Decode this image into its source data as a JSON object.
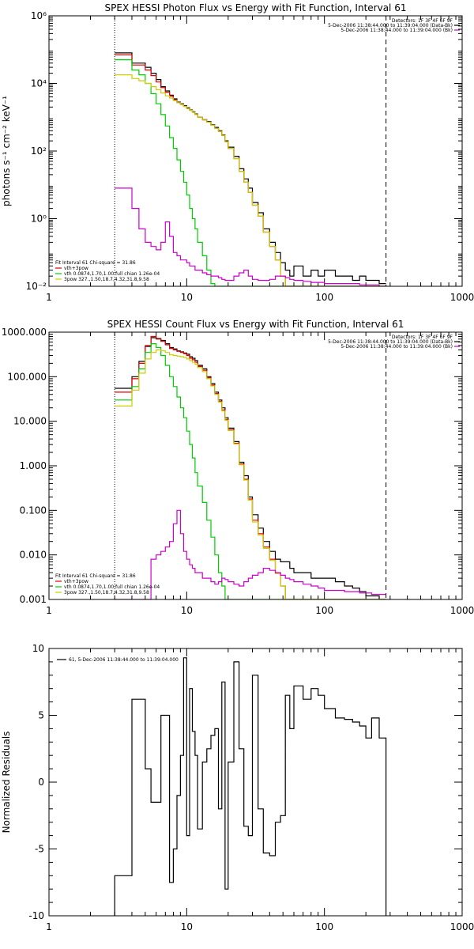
{
  "chart_data": [
    {
      "type": "line",
      "title": "SPEX HESSI Photon Flux vs Energy with Fit Function, Interval 61",
      "ylabel": "photons s⁻¹ cm⁻² keV⁻¹",
      "xlabel": "",
      "xscale": "log",
      "yscale": "log",
      "xlim": [
        1,
        1000
      ],
      "ylim": [
        0.01,
        1000000
      ],
      "xticks": [
        "1",
        "10",
        "100",
        "1000"
      ],
      "yticks": [
        "10⁻²",
        "10⁰",
        "10²",
        "10⁴",
        "10⁶"
      ],
      "vlines": [
        {
          "x": 3,
          "style": "dotted"
        },
        {
          "x": 280,
          "style": "dashed"
        }
      ],
      "legend_top_right": [
        {
          "text": "Detectors: 1F 3F 4F 6F 9F",
          "color": ""
        },
        {
          "text": "5-Dec-2006 11:38:44.000 to 11:39:04.000 (Data-Bk)",
          "color": "#000000"
        },
        {
          "text": "5-Dec-2006 11:38:44.000 to 11:39:04.000 (Bk)",
          "color": "#cc00cc"
        }
      ],
      "legend_bottom_left": [
        {
          "text": "Fit Interval 61    Chi-square = 31.86",
          "color": ""
        },
        {
          "text": "vth+3pow",
          "color": "#dd0000"
        },
        {
          "text": "vth 0.0874,1.70,1.00  full chian 1.26e-04",
          "color": "#00cc00"
        },
        {
          "text": "3pow 327.,1.50,18.7,4.32,31.8,9.58",
          "color": "#cccc00"
        }
      ],
      "energy_edges": [
        3,
        3.5,
        4,
        4.5,
        5,
        5.5,
        6,
        6.5,
        7,
        7.5,
        8,
        8.5,
        9,
        9.5,
        10,
        10.5,
        11,
        11.5,
        12,
        13,
        14,
        15,
        16,
        17,
        18,
        19,
        20,
        22,
        24,
        26,
        28,
        30,
        33,
        36,
        40,
        44,
        48,
        52,
        56,
        60,
        70,
        80,
        90,
        100,
        120,
        140,
        160,
        180,
        200,
        220,
        250,
        280
      ],
      "series": [
        {
          "color": "#000000",
          "values": [
            80000,
            80000,
            40000,
            40000,
            30000,
            20000,
            13000,
            8000,
            6000,
            4500,
            3500,
            2800,
            2500,
            2200,
            1900,
            1650,
            1450,
            1250,
            1000,
            850,
            750,
            600,
            500,
            400,
            300,
            200,
            130,
            70,
            30,
            15,
            8,
            3,
            1.5,
            0.5,
            0.2,
            0.1,
            0.05,
            0.03,
            0.02,
            0.04,
            0.02,
            0.03,
            0.02,
            0.03,
            0.02,
            0.02,
            0.015,
            0.02,
            0.015,
            0.015,
            0.012
          ]
        },
        {
          "color": "#dd0000",
          "values": [
            70000,
            70000,
            35000,
            35000,
            25000,
            17000,
            11000,
            7500,
            5500,
            4200,
            3300,
            2700,
            2400,
            2100,
            1800,
            1600,
            1400,
            1200,
            1000,
            830,
            720,
            580,
            470,
            380,
            290,
            190,
            120,
            60,
            25,
            12,
            6,
            2.5,
            1.2,
            0.4,
            0.15,
            0.06,
            0.02,
            0.01,
            0.01,
            0.01,
            0.01,
            0.01,
            0.01,
            0.01,
            0.01,
            0.01,
            0.01,
            0.01,
            0.01,
            0.01,
            0.01
          ]
        },
        {
          "color": "#00cc00",
          "values": [
            50000,
            50000,
            25000,
            18000,
            10000,
            5000,
            2500,
            1200,
            550,
            250,
            120,
            55,
            25,
            12,
            5,
            2,
            1,
            0.5,
            0.2,
            0.08,
            0.03,
            0.012,
            0.01,
            0.01,
            0.01,
            0.01,
            0.01,
            0.01,
            0.01,
            0.01,
            0.01,
            0.01,
            0.01,
            0.01,
            0.01,
            0.01,
            0.01,
            0.01,
            0.01,
            0.01,
            0.01,
            0.01,
            0.01,
            0.01,
            0.01,
            0.01,
            0.01,
            0.01,
            0.01,
            0.01,
            0.01
          ]
        },
        {
          "color": "#cccc00",
          "values": [
            18000,
            18000,
            14000,
            12000,
            10000,
            8000,
            6500,
            5200,
            4300,
            3700,
            3100,
            2700,
            2400,
            2100,
            1800,
            1600,
            1400,
            1200,
            1000,
            830,
            720,
            580,
            470,
            380,
            290,
            190,
            120,
            60,
            25,
            12,
            6,
            2.5,
            1.2,
            0.4,
            0.15,
            0.06,
            0.02,
            0.01,
            0.01,
            0.01,
            0.01,
            0.01,
            0.01,
            0.01,
            0.01,
            0.01,
            0.01,
            0.01,
            0.01,
            0.01,
            0.01
          ]
        },
        {
          "color": "#cc00cc",
          "values": [
            8,
            8,
            2,
            0.5,
            0.2,
            0.15,
            0.12,
            0.2,
            0.8,
            0.3,
            0.1,
            0.08,
            0.06,
            0.06,
            0.05,
            0.04,
            0.04,
            0.03,
            0.03,
            0.025,
            0.022,
            0.02,
            0.02,
            0.018,
            0.016,
            0.015,
            0.015,
            0.02,
            0.025,
            0.03,
            0.02,
            0.016,
            0.015,
            0.015,
            0.016,
            0.02,
            0.02,
            0.018,
            0.016,
            0.015,
            0.014,
            0.013,
            0.013,
            0.012,
            0.012,
            0.012,
            0.012,
            0.011,
            0.011,
            0.011,
            0.01
          ]
        }
      ]
    },
    {
      "type": "line",
      "title": "SPEX HESSI Count Flux vs Energy with Fit Function, Interval 61",
      "ylabel": "",
      "xlabel": "",
      "xscale": "log",
      "yscale": "log",
      "xlim": [
        1,
        1000
      ],
      "ylim": [
        0.001,
        1000
      ],
      "xticks": [
        "1",
        "10",
        "100",
        "1000"
      ],
      "yticks": [
        "0.001",
        "0.010",
        "0.100",
        "1.000",
        "10.000",
        "100.000",
        "1000.000"
      ],
      "vlines": [
        {
          "x": 3,
          "style": "dotted"
        },
        {
          "x": 280,
          "style": "dashed"
        }
      ],
      "legend_top_right": [
        {
          "text": "Detectors: 1F 3F 4F 6F 9F",
          "color": ""
        },
        {
          "text": "5-Dec-2006 11:38:44.000 to 11:39:04.000 (Data-Bk)",
          "color": "#000000"
        },
        {
          "text": "5-Dec-2006 11:38:44.000 to 11:39:04.000 (Bk)",
          "color": "#cc00cc"
        }
      ],
      "legend_bottom_left": [
        {
          "text": "Fit Interval 61    Chi-square = 31.86",
          "color": ""
        },
        {
          "text": "vth+3pow",
          "color": "#dd0000"
        },
        {
          "text": "vth 0.0874,1.70,1.00  full chian 1.26e-04",
          "color": "#00cc00"
        },
        {
          "text": "3pow 327.,1.50,18.7,4.32,31.8,9.58",
          "color": "#cccc00"
        }
      ],
      "energy_edges": [
        3,
        3.5,
        4,
        4.5,
        5,
        5.5,
        6,
        6.5,
        7,
        7.5,
        8,
        8.5,
        9,
        9.5,
        10,
        10.5,
        11,
        11.5,
        12,
        13,
        14,
        15,
        16,
        17,
        18,
        19,
        20,
        22,
        24,
        26,
        28,
        30,
        33,
        36,
        40,
        44,
        48,
        52,
        56,
        60,
        70,
        80,
        90,
        100,
        120,
        140,
        160,
        180,
        200,
        220,
        250,
        280
      ],
      "series": [
        {
          "color": "#000000",
          "values": [
            55,
            55,
            100,
            220,
            480,
            750,
            700,
            650,
            550,
            450,
            420,
            380,
            360,
            340,
            320,
            280,
            260,
            230,
            180,
            150,
            100,
            70,
            45,
            30,
            20,
            12,
            7,
            3.5,
            1.2,
            0.6,
            0.2,
            0.08,
            0.04,
            0.02,
            0.012,
            0.008,
            0.007,
            0.007,
            0.005,
            0.004,
            0.004,
            0.003,
            0.003,
            0.003,
            0.0025,
            0.002,
            0.0018,
            0.0015,
            0.0012,
            0.0012,
            0.001
          ]
        },
        {
          "color": "#dd0000",
          "values": [
            45,
            45,
            90,
            200,
            500,
            800,
            720,
            620,
            520,
            430,
            400,
            370,
            350,
            330,
            300,
            260,
            240,
            210,
            170,
            140,
            95,
            65,
            42,
            28,
            18,
            11,
            6.5,
            3.2,
            1.1,
            0.5,
            0.18,
            0.06,
            0.03,
            0.015,
            0.008,
            0.004,
            0.002,
            0.001,
            0.001,
            0.001,
            0.001,
            0.001,
            0.001,
            0.001,
            0.001,
            0.001,
            0.001,
            0.001,
            0.001,
            0.001,
            0.001
          ]
        },
        {
          "color": "#00cc00",
          "values": [
            30,
            30,
            60,
            150,
            350,
            550,
            450,
            300,
            180,
            100,
            60,
            35,
            20,
            12,
            6,
            3,
            1.5,
            0.7,
            0.35,
            0.15,
            0.06,
            0.025,
            0.01,
            0.004,
            0.002,
            0.001,
            0.001,
            0.001,
            0.001,
            0.001,
            0.001,
            0.001,
            0.001,
            0.001,
            0.001,
            0.001,
            0.001,
            0.001,
            0.001,
            0.001,
            0.001,
            0.001,
            0.001,
            0.001,
            0.001,
            0.001,
            0.001,
            0.001,
            0.001,
            0.001,
            0.001
          ]
        },
        {
          "color": "#cccc00",
          "values": [
            22,
            22,
            50,
            120,
            250,
            350,
            400,
            380,
            350,
            310,
            300,
            290,
            280,
            270,
            250,
            230,
            210,
            190,
            160,
            130,
            90,
            62,
            40,
            27,
            17,
            10.5,
            6.2,
            3.1,
            1.05,
            0.48,
            0.17,
            0.055,
            0.028,
            0.014,
            0.0075,
            0.0038,
            0.002,
            0.001,
            0.001,
            0.001,
            0.001,
            0.001,
            0.001,
            0.001,
            0.001,
            0.001,
            0.001,
            0.001,
            0.001,
            0.001,
            0.001
          ]
        },
        {
          "color": "#cc00cc",
          "values": [
            0.001,
            0.001,
            0.001,
            0.001,
            0.001,
            0.008,
            0.01,
            0.012,
            0.015,
            0.02,
            0.05,
            0.1,
            0.03,
            0.012,
            0.008,
            0.006,
            0.005,
            0.004,
            0.004,
            0.003,
            0.003,
            0.0025,
            0.0022,
            0.0025,
            0.003,
            0.0028,
            0.0025,
            0.0022,
            0.002,
            0.0025,
            0.003,
            0.0035,
            0.004,
            0.005,
            0.0045,
            0.004,
            0.0035,
            0.003,
            0.0028,
            0.0025,
            0.0022,
            0.002,
            0.0018,
            0.0016,
            0.0016,
            0.0015,
            0.0015,
            0.0014,
            0.0014,
            0.0013,
            0.0013
          ]
        }
      ]
    },
    {
      "type": "line",
      "title": "",
      "ylabel": "Normalized Residuals",
      "xlabel": "",
      "xscale": "log",
      "yscale": "linear",
      "xlim": [
        1,
        1000
      ],
      "ylim": [
        -10,
        10
      ],
      "xticks": [
        "1",
        "10",
        "100",
        "1000"
      ],
      "yticks": [
        "-10",
        "-5",
        "0",
        "5",
        "10"
      ],
      "legend": {
        "text": "61,  5-Dec-2006 11:38:44.000 to 11:39:04.000",
        "color": "#000000"
      },
      "energy_edges": [
        3,
        3.5,
        4,
        4.5,
        5,
        5.5,
        6,
        6.5,
        7,
        7.5,
        8,
        8.5,
        9,
        9.5,
        10,
        10.5,
        11,
        11.5,
        12,
        13,
        14,
        15,
        16,
        17,
        18,
        19,
        20,
        22,
        24,
        26,
        28,
        30,
        33,
        36,
        40,
        44,
        48,
        52,
        56,
        60,
        70,
        80,
        90,
        100,
        120,
        140,
        160,
        180,
        200,
        220,
        250,
        280
      ],
      "series": [
        {
          "color": "#000000",
          "values": [
            -7,
            -7,
            6.2,
            6.2,
            1,
            -1.5,
            -1.5,
            5,
            5,
            -7.5,
            -5,
            -1,
            2,
            9.3,
            -4,
            7,
            3.8,
            2,
            -3.5,
            1.5,
            2.5,
            3.5,
            4,
            -2,
            7.5,
            -8,
            1.5,
            9,
            2.5,
            -3.3,
            -4,
            8,
            -2,
            -5.3,
            -5.5,
            -3,
            -2.5,
            6.5,
            4,
            7.2,
            6.2,
            7,
            6.5,
            5.5,
            4.8,
            4.7,
            4.5,
            4.2,
            3.3,
            4.8,
            3.3
          ]
        }
      ]
    }
  ]
}
